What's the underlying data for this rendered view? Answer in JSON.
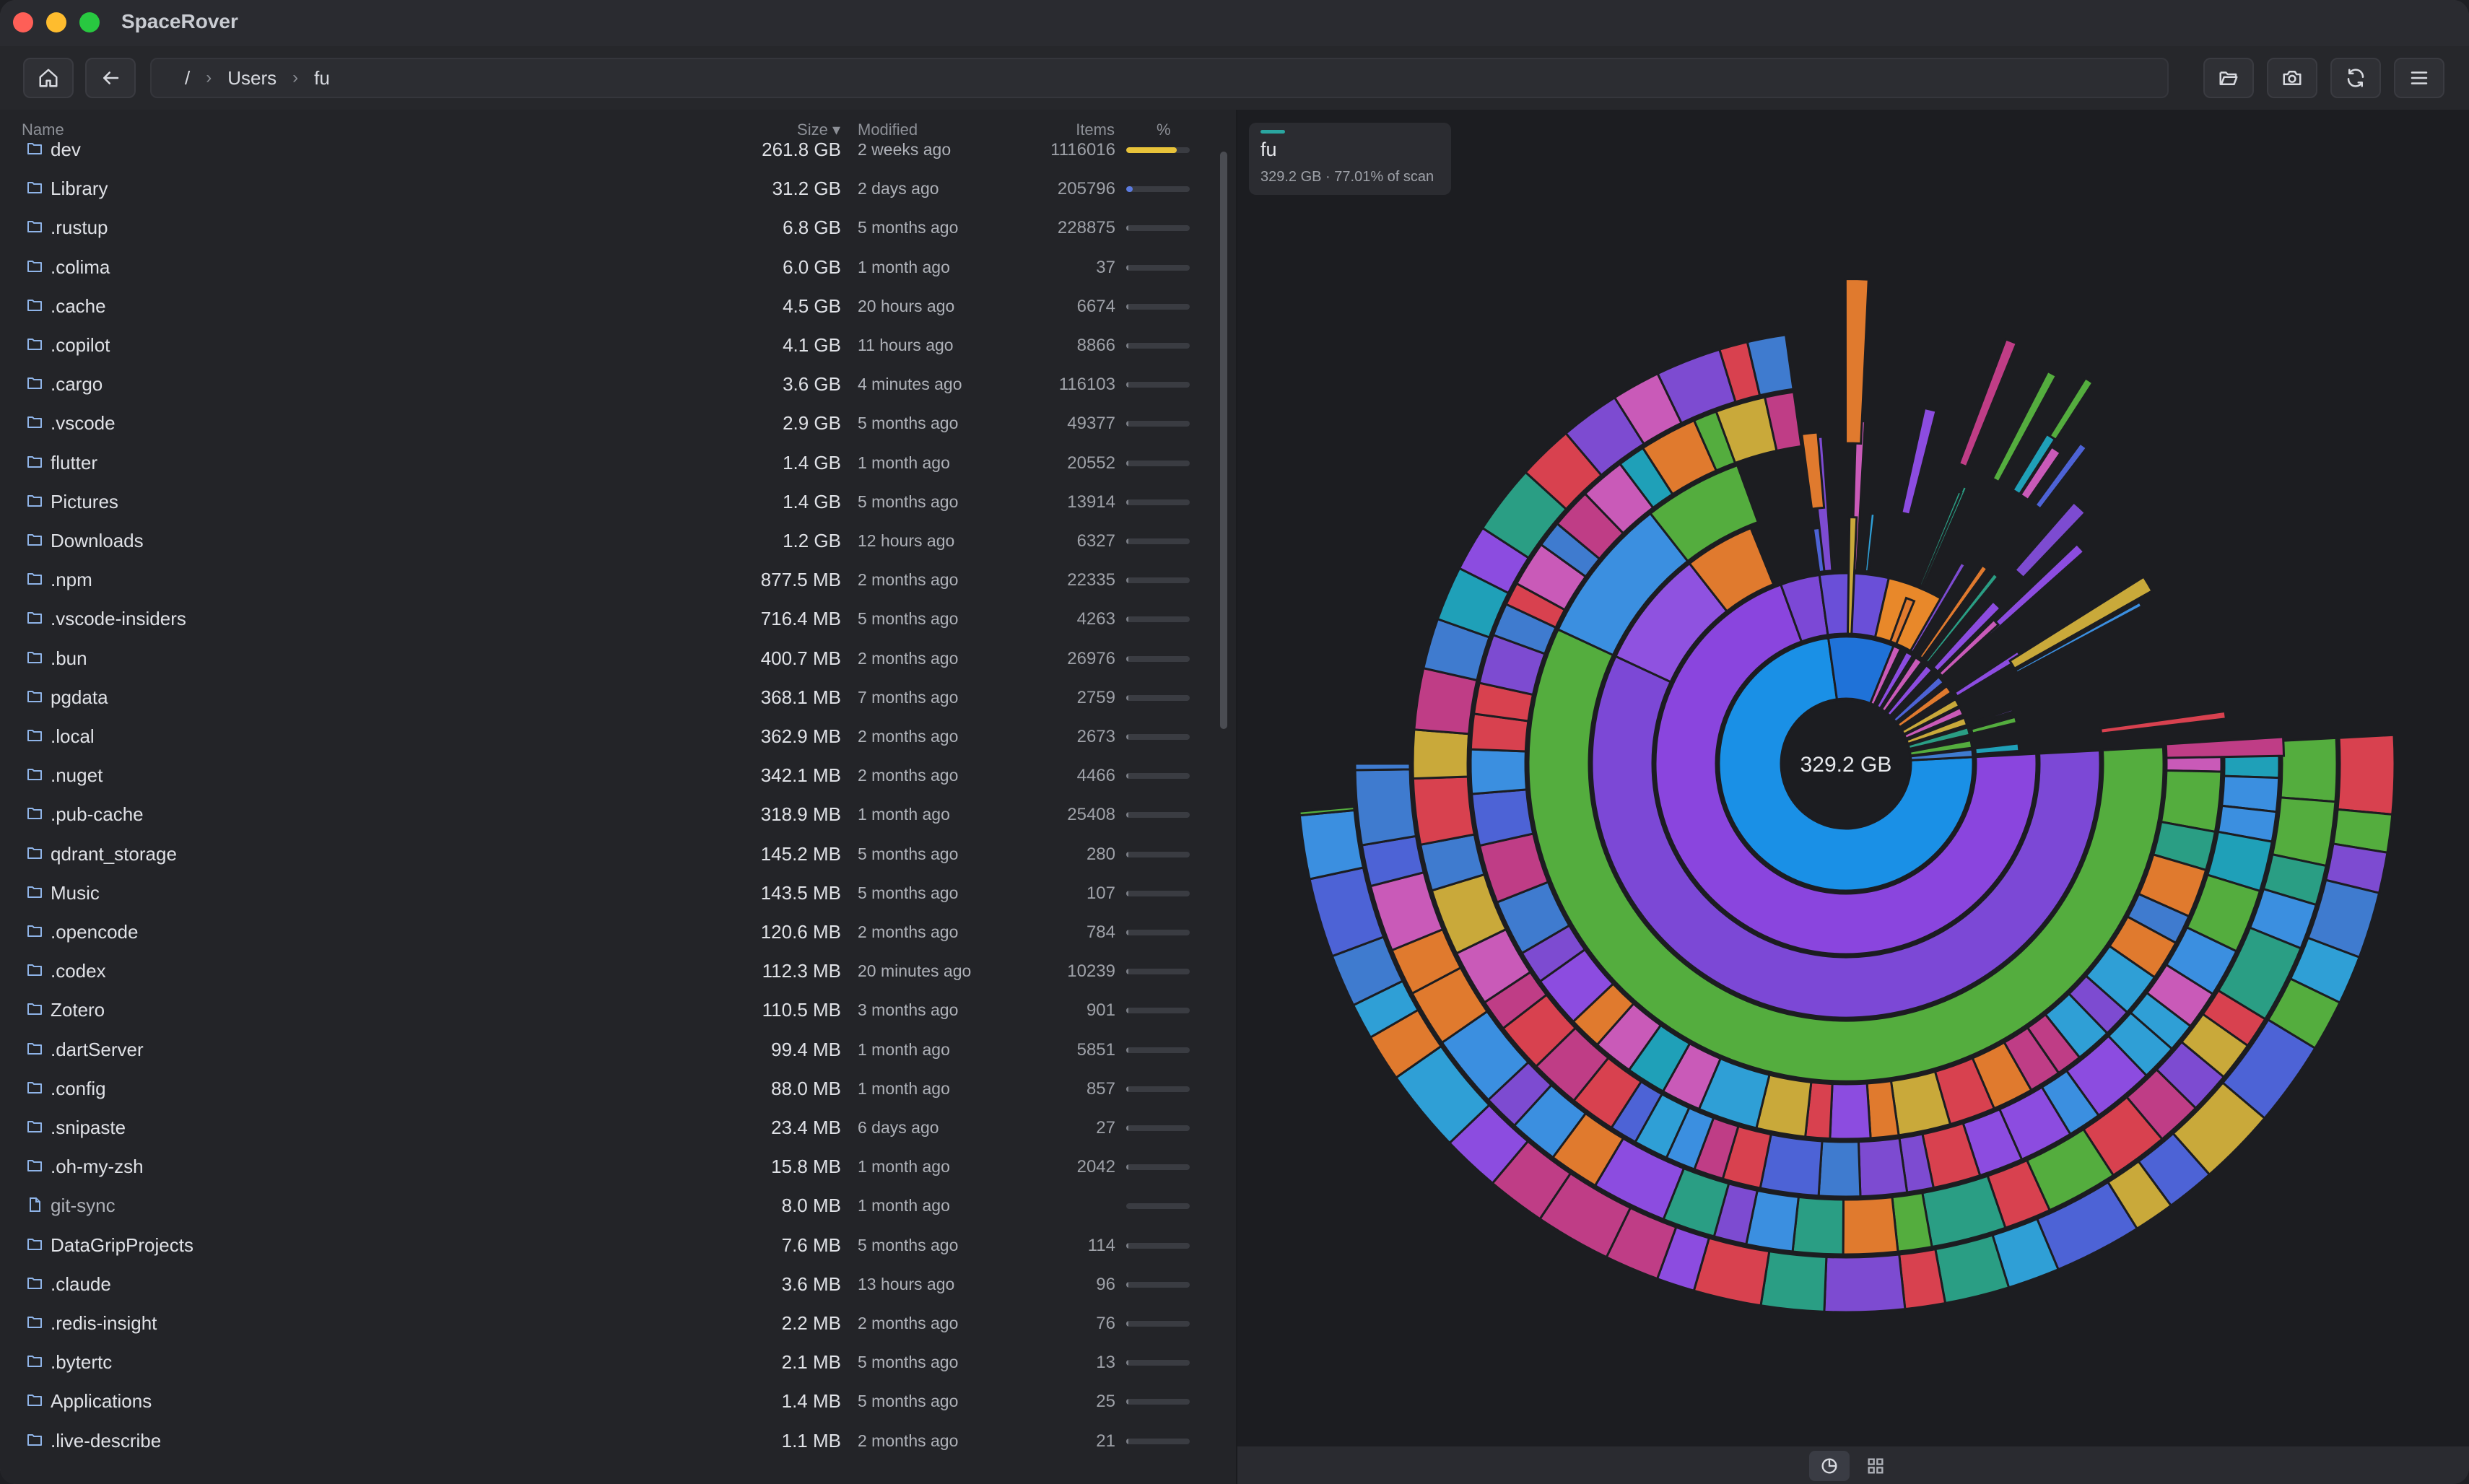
{
  "app": {
    "title": "SpaceRover"
  },
  "breadcrumb": [
    "/",
    "Users",
    "fu"
  ],
  "columns": {
    "name": "Name",
    "size": "Size ▾",
    "modified": "Modified",
    "items": "Items",
    "percent": "%"
  },
  "rows": [
    {
      "name": "dev",
      "size": "261.8 GB",
      "modified": "2 weeks ago",
      "items": "1116016",
      "pct": 0.8,
      "color": "#e8c33a",
      "type": "folder"
    },
    {
      "name": "Library",
      "size": "31.2 GB",
      "modified": "2 days ago",
      "items": "205796",
      "pct": 0.1,
      "color": "#5b7be0",
      "type": "folder"
    },
    {
      "name": ".rustup",
      "size": "6.8 GB",
      "modified": "5 months ago",
      "items": "228875",
      "pct": 0.02,
      "color": "#8a8d94",
      "type": "folder"
    },
    {
      "name": ".colima",
      "size": "6.0 GB",
      "modified": "1 month ago",
      "items": "37",
      "pct": 0.02,
      "color": "#8a8d94",
      "type": "folder"
    },
    {
      "name": ".cache",
      "size": "4.5 GB",
      "modified": "20 hours ago",
      "items": "6674",
      "pct": 0.015,
      "color": "#8a8d94",
      "type": "folder"
    },
    {
      "name": ".copilot",
      "size": "4.1 GB",
      "modified": "11 hours ago",
      "items": "8866",
      "pct": 0.013,
      "color": "#8a8d94",
      "type": "folder"
    },
    {
      "name": ".cargo",
      "size": "3.6 GB",
      "modified": "4 minutes ago",
      "items": "116103",
      "pct": 0.012,
      "color": "#8a8d94",
      "type": "folder"
    },
    {
      "name": ".vscode",
      "size": "2.9 GB",
      "modified": "5 months ago",
      "items": "49377",
      "pct": 0.01,
      "color": "#8a8d94",
      "type": "folder"
    },
    {
      "name": "flutter",
      "size": "1.4 GB",
      "modified": "1 month ago",
      "items": "20552",
      "pct": 0.01,
      "color": "#8a8d94",
      "type": "folder"
    },
    {
      "name": "Pictures",
      "size": "1.4 GB",
      "modified": "5 months ago",
      "items": "13914",
      "pct": 0.01,
      "color": "#8a8d94",
      "type": "folder"
    },
    {
      "name": "Downloads",
      "size": "1.2 GB",
      "modified": "12 hours ago",
      "items": "6327",
      "pct": 0.01,
      "color": "#8a8d94",
      "type": "folder"
    },
    {
      "name": ".npm",
      "size": "877.5 MB",
      "modified": "2 months ago",
      "items": "22335",
      "pct": 0.008,
      "color": "#8a8d94",
      "type": "folder"
    },
    {
      "name": ".vscode-insiders",
      "size": "716.4 MB",
      "modified": "5 months ago",
      "items": "4263",
      "pct": 0.008,
      "color": "#8a8d94",
      "type": "folder"
    },
    {
      "name": ".bun",
      "size": "400.7 MB",
      "modified": "2 months ago",
      "items": "26976",
      "pct": 0.006,
      "color": "#8a8d94",
      "type": "folder"
    },
    {
      "name": "pgdata",
      "size": "368.1 MB",
      "modified": "7 months ago",
      "items": "2759",
      "pct": 0.006,
      "color": "#8a8d94",
      "type": "folder"
    },
    {
      "name": ".local",
      "size": "362.9 MB",
      "modified": "2 months ago",
      "items": "2673",
      "pct": 0.006,
      "color": "#8a8d94",
      "type": "folder"
    },
    {
      "name": ".nuget",
      "size": "342.1 MB",
      "modified": "2 months ago",
      "items": "4466",
      "pct": 0.006,
      "color": "#8a8d94",
      "type": "folder"
    },
    {
      "name": ".pub-cache",
      "size": "318.9 MB",
      "modified": "1 month ago",
      "items": "25408",
      "pct": 0.006,
      "color": "#8a8d94",
      "type": "folder"
    },
    {
      "name": "qdrant_storage",
      "size": "145.2 MB",
      "modified": "5 months ago",
      "items": "280",
      "pct": 0.005,
      "color": "#8a8d94",
      "type": "folder"
    },
    {
      "name": "Music",
      "size": "143.5 MB",
      "modified": "5 months ago",
      "items": "107",
      "pct": 0.005,
      "color": "#8a8d94",
      "type": "folder"
    },
    {
      "name": ".opencode",
      "size": "120.6 MB",
      "modified": "2 months ago",
      "items": "784",
      "pct": 0.005,
      "color": "#8a8d94",
      "type": "folder"
    },
    {
      "name": ".codex",
      "size": "112.3 MB",
      "modified": "20 minutes ago",
      "items": "10239",
      "pct": 0.005,
      "color": "#8a8d94",
      "type": "folder"
    },
    {
      "name": "Zotero",
      "size": "110.5 MB",
      "modified": "3 months ago",
      "items": "901",
      "pct": 0.005,
      "color": "#8a8d94",
      "type": "folder"
    },
    {
      "name": ".dartServer",
      "size": "99.4 MB",
      "modified": "1 month ago",
      "items": "5851",
      "pct": 0.005,
      "color": "#8a8d94",
      "type": "folder"
    },
    {
      "name": ".config",
      "size": "88.0 MB",
      "modified": "1 month ago",
      "items": "857",
      "pct": 0.005,
      "color": "#8a8d94",
      "type": "folder"
    },
    {
      "name": ".snipaste",
      "size": "23.4 MB",
      "modified": "6 days ago",
      "items": "27",
      "pct": 0.004,
      "color": "#8a8d94",
      "type": "folder"
    },
    {
      "name": ".oh-my-zsh",
      "size": "15.8 MB",
      "modified": "1 month ago",
      "items": "2042",
      "pct": 0.004,
      "color": "#8a8d94",
      "type": "folder"
    },
    {
      "name": "git-sync",
      "size": "8.0 MB",
      "modified": "1 month ago",
      "items": "",
      "pct": 0.0,
      "color": "#8a8d94",
      "type": "file"
    },
    {
      "name": "DataGripProjects",
      "size": "7.6 MB",
      "modified": "5 months ago",
      "items": "114",
      "pct": 0.004,
      "color": "#8a8d94",
      "type": "folder"
    },
    {
      "name": ".claude",
      "size": "3.6 MB",
      "modified": "13 hours ago",
      "items": "96",
      "pct": 0.004,
      "color": "#8a8d94",
      "type": "folder"
    },
    {
      "name": ".redis-insight",
      "size": "2.2 MB",
      "modified": "2 months ago",
      "items": "76",
      "pct": 0.004,
      "color": "#8a8d94",
      "type": "folder"
    },
    {
      "name": ".bytertc",
      "size": "2.1 MB",
      "modified": "5 months ago",
      "items": "13",
      "pct": 0.004,
      "color": "#8a8d94",
      "type": "folder"
    },
    {
      "name": "Applications",
      "size": "1.4 MB",
      "modified": "5 months ago",
      "items": "25",
      "pct": 0.004,
      "color": "#8a8d94",
      "type": "folder"
    },
    {
      "name": ".live-describe",
      "size": "1.1 MB",
      "modified": "2 months ago",
      "items": "21",
      "pct": 0.004,
      "color": "#8a8d94",
      "type": "folder"
    }
  ],
  "info": {
    "title": "fu",
    "subtitle": "329.2 GB · 77.01% of scan"
  },
  "sunburst": {
    "center_label": "329.2 GB"
  },
  "icons": {
    "home": "home-icon",
    "back": "arrow-left-icon",
    "open": "folder-open-icon",
    "camera": "camera-icon",
    "refresh": "refresh-icon",
    "menu": "menu-icon",
    "pie": "pie-chart-icon",
    "grid": "grid-icon"
  }
}
